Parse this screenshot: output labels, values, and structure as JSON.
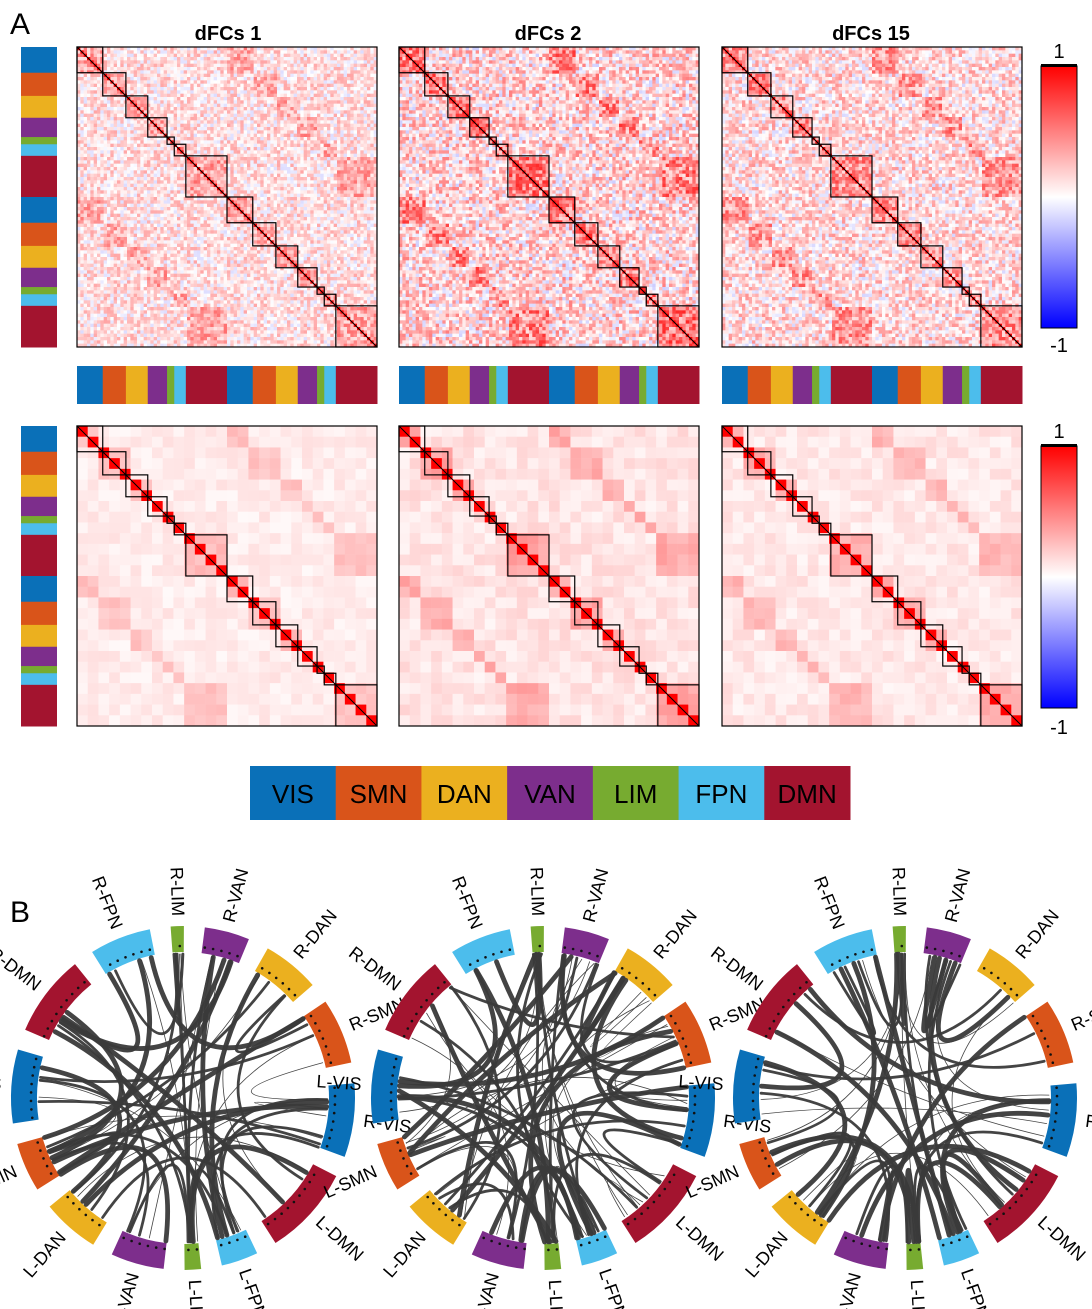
{
  "panel_labels": {
    "a": "A",
    "b": "B"
  },
  "matrix_titles": [
    "dFCs 1",
    "dFCs 2",
    "dFCs 15"
  ],
  "colorbar_top": {
    "max": "1",
    "min": "-1"
  },
  "colorbar_bottom": {
    "max": "1",
    "min": "-1"
  },
  "colorbar_colors": {
    "low": "#0000ff",
    "mid": "#ffffff",
    "high": "#ff0000"
  },
  "networks": [
    {
      "label": "VIS",
      "color": "#0a70b8"
    },
    {
      "label": "SMN",
      "color": "#d9541a"
    },
    {
      "label": "DAN",
      "color": "#ebb01f"
    },
    {
      "label": "VAN",
      "color": "#7d2e8c"
    },
    {
      "label": "LIM",
      "color": "#77ab30"
    },
    {
      "label": "FPN",
      "color": "#4cbdec"
    },
    {
      "label": "DMN",
      "color": "#a3142f"
    }
  ],
  "network_weights": [
    1.0,
    0.9,
    0.85,
    0.75,
    0.28,
    0.45,
    1.6
  ],
  "ring_labels": [
    "R-VIS",
    "R-SMN",
    "R-DAN",
    "R-VAN",
    "R-LIM",
    "R-FPN",
    "R-DMN",
    "L-VIS",
    "L-SMN",
    "L-DAN",
    "L-VAN",
    "L-LIM",
    "L-FPN",
    "L-DMN"
  ],
  "ring_colors": [
    "#0a70b8",
    "#d9541a",
    "#ebb01f",
    "#7d2e8c",
    "#77ab30",
    "#4cbdec",
    "#a3142f",
    "#0a70b8",
    "#d9541a",
    "#ebb01f",
    "#7d2e8c",
    "#77ab30",
    "#4cbdec",
    "#a3142f"
  ],
  "edge_color": "#3a3a3a"
}
